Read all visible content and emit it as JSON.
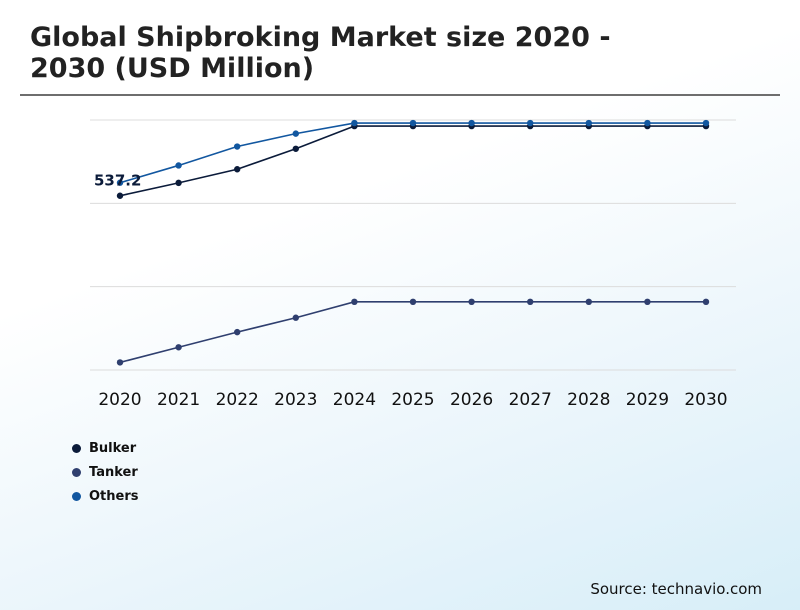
{
  "header": {
    "title": "Global Shipbroking Market size 2020 - 2030 (USD Million)"
  },
  "source": "Source: technavio.com",
  "chart_data": {
    "type": "line",
    "title": "Global Shipbroking Market size 2020 - 2030 (USD Million)",
    "xlabel": "",
    "ylabel": "",
    "categories": [
      "2020",
      "2021",
      "2022",
      "2023",
      "2024",
      "2025",
      "2026",
      "2027",
      "2028",
      "2029",
      "2030"
    ],
    "series": [
      {
        "name": "Bulker",
        "color": "#0b1b3a",
        "values": [
          520,
          537,
          555,
          582,
          612,
          612,
          612,
          612,
          612,
          612,
          612
        ]
      },
      {
        "name": "Tanker",
        "color": "#2f3f6f",
        "values": [
          300,
          320,
          340,
          359,
          380,
          380,
          380,
          380,
          380,
          380,
          380
        ]
      },
      {
        "name": "Others",
        "color": "#1257a0",
        "values": [
          537.2,
          560,
          585,
          602,
          616,
          616,
          616,
          616,
          616,
          616,
          616
        ]
      }
    ],
    "annotations": [
      {
        "series": "Others",
        "index": 0,
        "text": "537.2"
      }
    ],
    "ylim": [
      290,
      620
    ],
    "grid": true,
    "legend_position": "bottom-left"
  }
}
